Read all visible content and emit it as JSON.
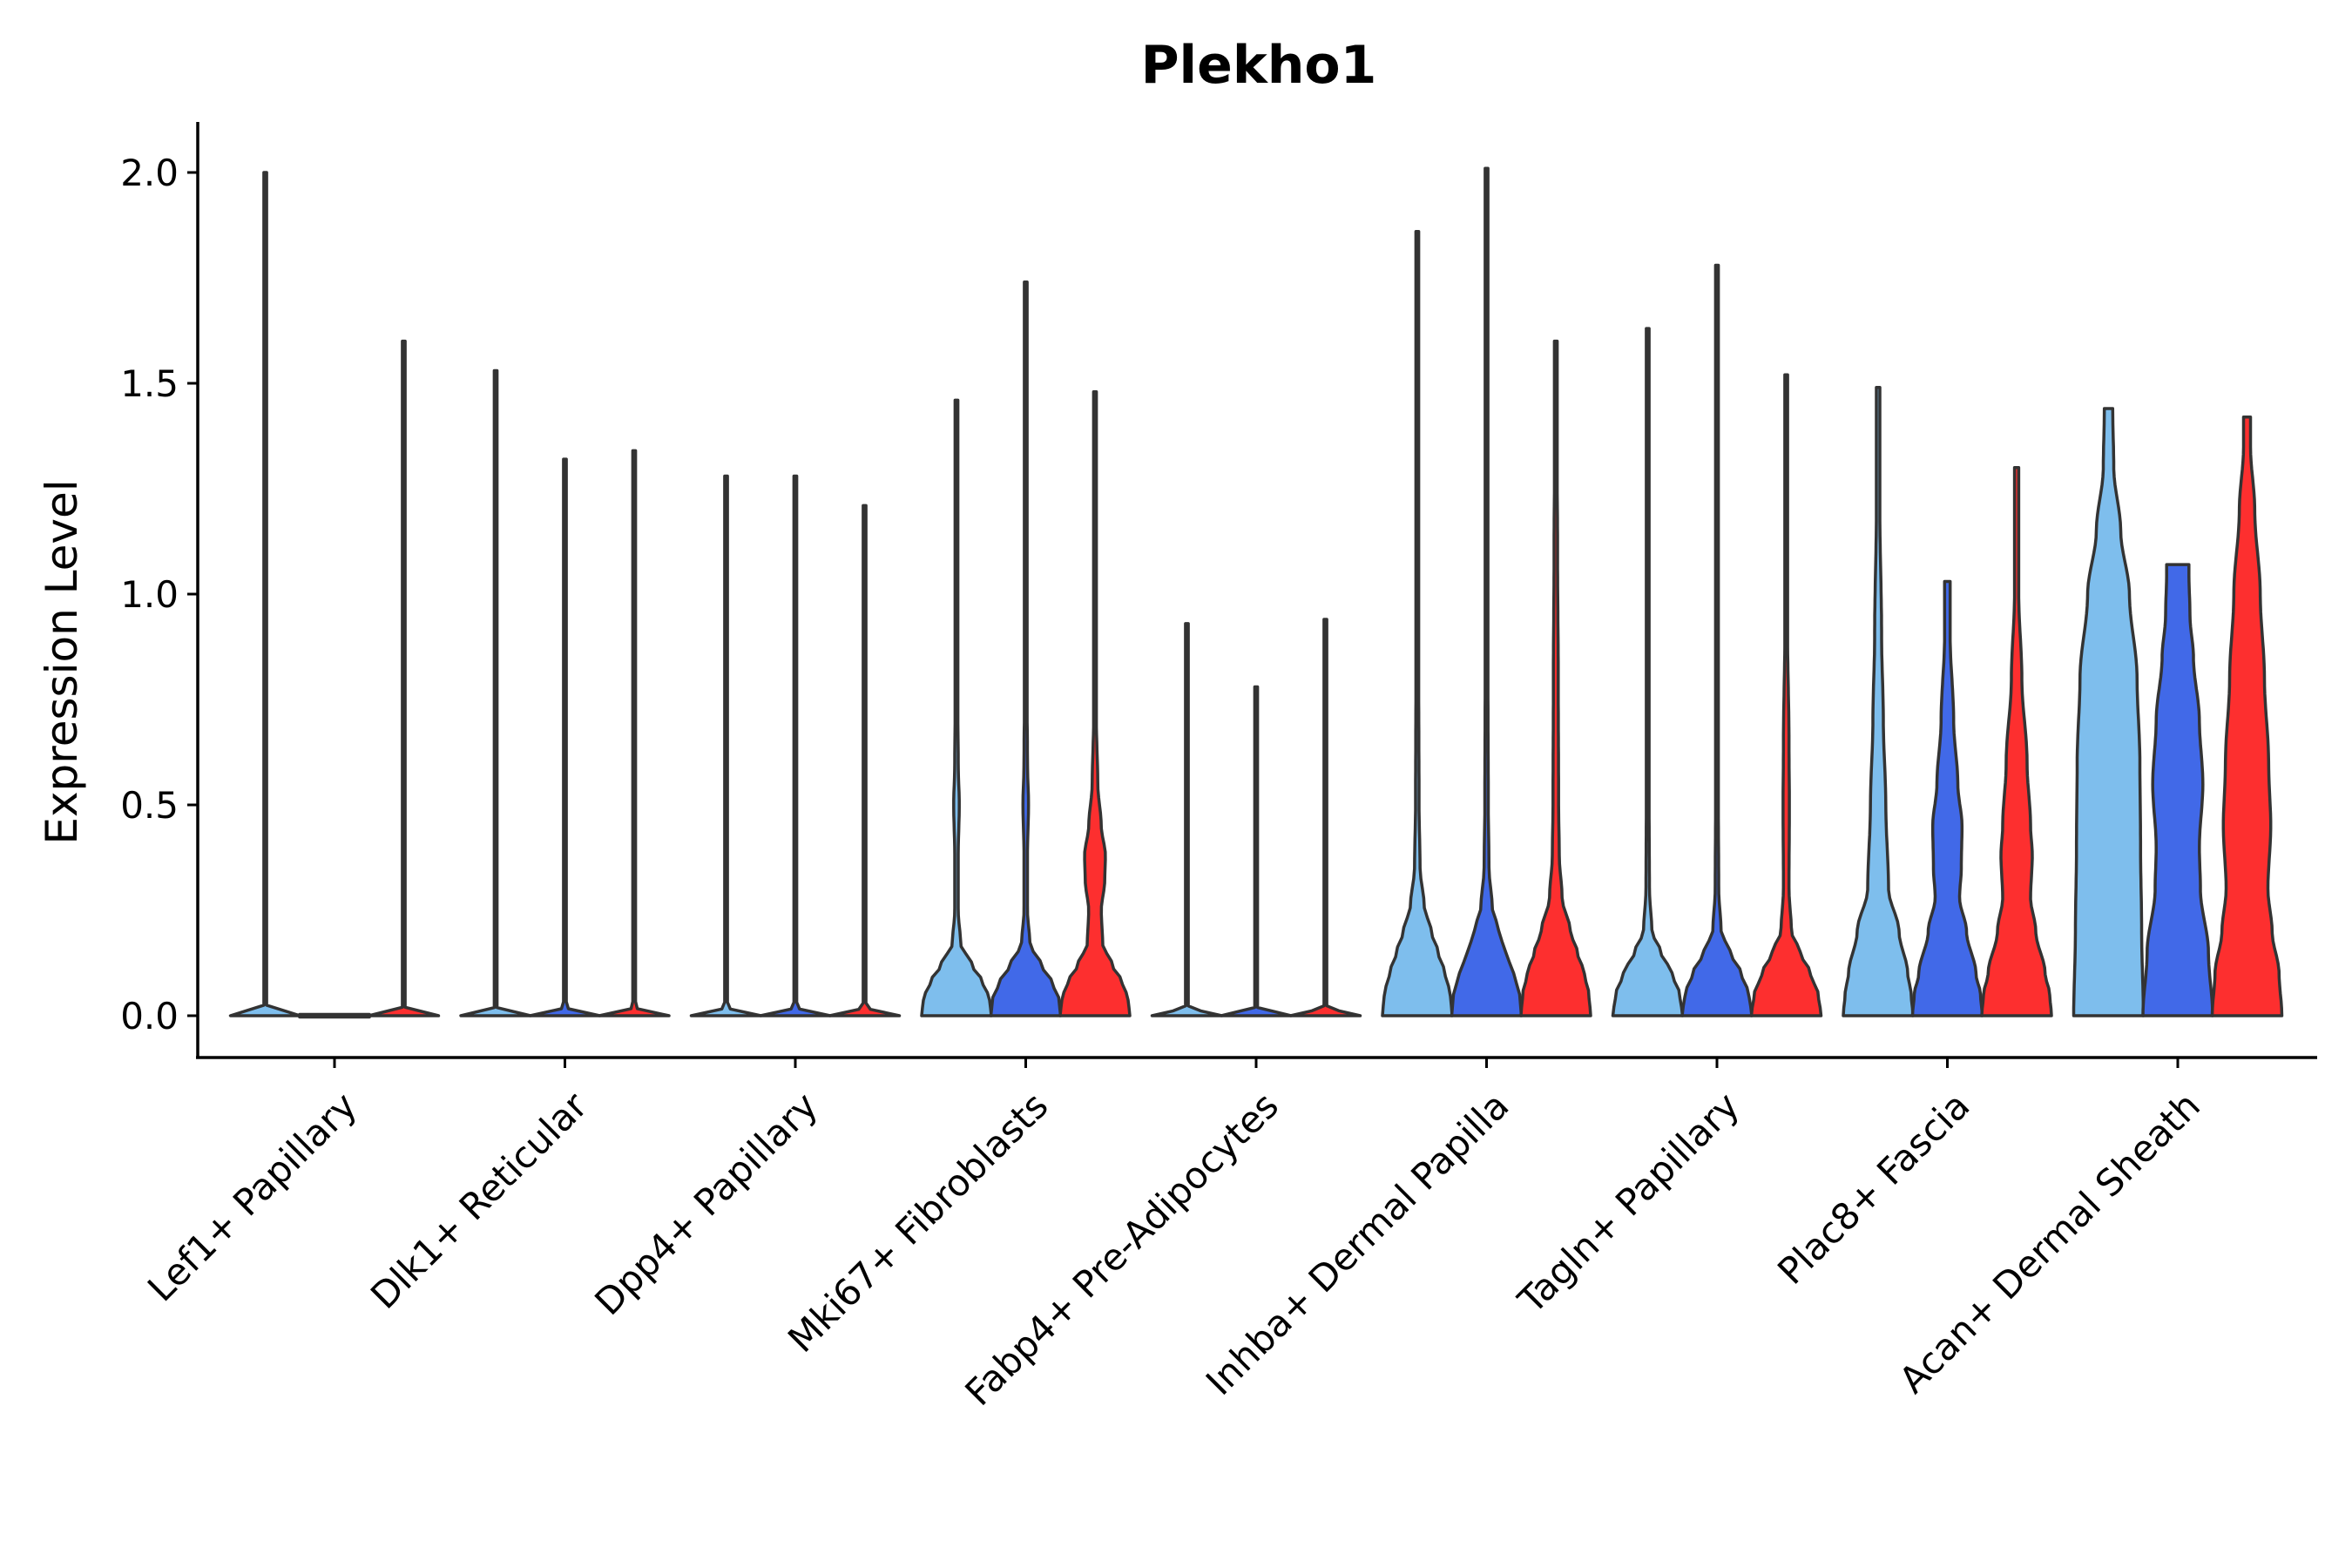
{
  "chart_data": {
    "type": "violin",
    "title": "Plekho1",
    "xlabel": "",
    "ylabel": "Expression Level",
    "ylim": [
      -0.1,
      2.1
    ],
    "yticks": [
      "0.0",
      "0.5",
      "1.0",
      "1.5",
      "2.0"
    ],
    "ytick_values": [
      0.0,
      0.5,
      1.0,
      1.5,
      2.0
    ],
    "series_colors": [
      "#7ebeed",
      "#4169e8",
      "#fd2f2f"
    ],
    "categories": [
      "Lef1+ Papillary",
      "Dlk1+ Reticular",
      "Dpp4+ Papillary",
      "Mki67+ Fibroblasts",
      "Fabp4+ Pre-Adipocytes",
      "Inhba+ Dermal Papilla",
      "Tagln+ Papillary",
      "Plac8+ Fascia",
      "Acan+ Dermal Sheath"
    ],
    "violins": [
      [
        {
          "max": 2.0,
          "profile": [
            [
              0,
              1.0
            ],
            [
              0.02,
              0.02
            ],
            [
              0.1,
              0.0
            ]
          ]
        },
        {
          "max": 0.0,
          "profile": [
            [
              0,
              1.0
            ],
            [
              0.02,
              0.02
            ],
            [
              0.1,
              0.0
            ]
          ]
        },
        {
          "max": 1.6,
          "profile": [
            [
              0,
              1.0
            ],
            [
              0.02,
              0.02
            ],
            [
              0.1,
              0.0
            ]
          ]
        }
      ],
      [
        {
          "max": 1.53,
          "profile": [
            [
              0,
              1.0
            ],
            [
              0.02,
              0.02
            ],
            [
              0.1,
              0.0
            ]
          ]
        },
        {
          "max": 1.32,
          "profile": [
            [
              0,
              1.0
            ],
            [
              0.02,
              0.02
            ],
            [
              0.1,
              0.0
            ]
          ]
        },
        {
          "max": 1.34,
          "profile": [
            [
              0,
              1.0
            ],
            [
              0.02,
              0.02
            ],
            [
              0.1,
              0.0
            ]
          ]
        }
      ],
      [
        {
          "max": 1.28,
          "profile": [
            [
              0,
              1.0
            ],
            [
              0.02,
              0.02
            ],
            [
              0.1,
              0.0
            ]
          ]
        },
        {
          "max": 1.28,
          "profile": [
            [
              0,
              1.0
            ],
            [
              0.02,
              0.02
            ],
            [
              0.1,
              0.0
            ]
          ]
        },
        {
          "max": 1.21,
          "profile": [
            [
              0,
              1.0
            ],
            [
              0.02,
              0.02
            ],
            [
              0.1,
              0.0
            ]
          ]
        }
      ],
      [
        {
          "max": 1.46,
          "profile": [
            [
              0,
              1.0
            ],
            [
              0.04,
              0.95
            ],
            [
              0.08,
              0.75
            ],
            [
              0.12,
              0.45
            ],
            [
              0.17,
              0.12
            ],
            [
              0.25,
              0.05
            ],
            [
              0.38,
              0.05
            ],
            [
              0.5,
              0.08
            ],
            [
              0.6,
              0.05
            ],
            [
              0.8,
              0.03
            ],
            [
              1.0,
              0.02
            ]
          ]
        },
        {
          "max": 1.74,
          "profile": [
            [
              0,
              1.0
            ],
            [
              0.04,
              0.95
            ],
            [
              0.08,
              0.75
            ],
            [
              0.12,
              0.45
            ],
            [
              0.17,
              0.12
            ],
            [
              0.25,
              0.05
            ],
            [
              0.38,
              0.05
            ],
            [
              0.5,
              0.08
            ],
            [
              0.6,
              0.05
            ],
            [
              0.8,
              0.03
            ],
            [
              1.0,
              0.02
            ]
          ]
        },
        {
          "max": 1.48,
          "profile": [
            [
              0,
              1.0
            ],
            [
              0.04,
              0.95
            ],
            [
              0.08,
              0.78
            ],
            [
              0.12,
              0.5
            ],
            [
              0.17,
              0.22
            ],
            [
              0.25,
              0.18
            ],
            [
              0.32,
              0.28
            ],
            [
              0.38,
              0.3
            ],
            [
              0.45,
              0.18
            ],
            [
              0.55,
              0.08
            ],
            [
              0.7,
              0.04
            ],
            [
              1.0,
              0.02
            ]
          ]
        }
      ],
      [
        {
          "max": 0.93,
          "profile": [
            [
              0,
              1.0
            ],
            [
              0.02,
              0.02
            ],
            [
              0.1,
              0.0
            ]
          ]
        },
        {
          "max": 0.78,
          "profile": [
            [
              0,
              1.0
            ],
            [
              0.02,
              0.02
            ],
            [
              0.1,
              0.0
            ]
          ]
        },
        {
          "max": 0.94,
          "profile": [
            [
              0,
              1.0
            ],
            [
              0.02,
              0.02
            ],
            [
              0.1,
              0.0
            ]
          ]
        }
      ],
      [
        {
          "max": 1.86,
          "profile": [
            [
              0,
              1.0
            ],
            [
              0.05,
              0.95
            ],
            [
              0.1,
              0.8
            ],
            [
              0.15,
              0.6
            ],
            [
              0.2,
              0.4
            ],
            [
              0.26,
              0.2
            ],
            [
              0.35,
              0.08
            ],
            [
              0.5,
              0.05
            ],
            [
              0.8,
              0.04
            ],
            [
              1.1,
              0.03
            ],
            [
              1.5,
              0.02
            ]
          ]
        },
        {
          "max": 2.01,
          "profile": [
            [
              0,
              1.0
            ],
            [
              0.05,
              0.95
            ],
            [
              0.1,
              0.78
            ],
            [
              0.15,
              0.55
            ],
            [
              0.2,
              0.35
            ],
            [
              0.26,
              0.16
            ],
            [
              0.35,
              0.07
            ],
            [
              0.5,
              0.05
            ],
            [
              0.8,
              0.04
            ],
            [
              1.1,
              0.03
            ],
            [
              1.5,
              0.02
            ]
          ]
        },
        {
          "max": 1.6,
          "profile": [
            [
              0,
              1.0
            ],
            [
              0.05,
              0.95
            ],
            [
              0.1,
              0.82
            ],
            [
              0.15,
              0.62
            ],
            [
              0.2,
              0.42
            ],
            [
              0.28,
              0.18
            ],
            [
              0.38,
              0.1
            ],
            [
              0.5,
              0.08
            ],
            [
              0.8,
              0.07
            ],
            [
              1.1,
              0.05
            ],
            [
              1.4,
              0.03
            ]
          ]
        }
      ],
      [
        {
          "max": 1.63,
          "profile": [
            [
              0,
              1.0
            ],
            [
              0.05,
              0.92
            ],
            [
              0.1,
              0.7
            ],
            [
              0.15,
              0.38
            ],
            [
              0.2,
              0.12
            ],
            [
              0.3,
              0.05
            ],
            [
              0.5,
              0.04
            ],
            [
              0.8,
              0.03
            ],
            [
              1.2,
              0.02
            ]
          ]
        },
        {
          "max": 1.78,
          "profile": [
            [
              0,
              1.0
            ],
            [
              0.05,
              0.92
            ],
            [
              0.1,
              0.7
            ],
            [
              0.15,
              0.38
            ],
            [
              0.2,
              0.12
            ],
            [
              0.3,
              0.05
            ],
            [
              0.5,
              0.04
            ],
            [
              0.8,
              0.03
            ],
            [
              1.2,
              0.02
            ]
          ]
        },
        {
          "max": 1.52,
          "profile": [
            [
              0,
              1.0
            ],
            [
              0.05,
              0.92
            ],
            [
              0.1,
              0.7
            ],
            [
              0.15,
              0.4
            ],
            [
              0.2,
              0.15
            ],
            [
              0.3,
              0.08
            ],
            [
              0.5,
              0.09
            ],
            [
              0.65,
              0.08
            ],
            [
              0.9,
              0.04
            ],
            [
              1.2,
              0.02
            ]
          ]
        }
      ],
      [
        {
          "max": 1.49,
          "profile": [
            [
              0,
              1.0
            ],
            [
              0.05,
              0.95
            ],
            [
              0.1,
              0.85
            ],
            [
              0.2,
              0.6
            ],
            [
              0.3,
              0.3
            ],
            [
              0.5,
              0.22
            ],
            [
              0.7,
              0.15
            ],
            [
              0.9,
              0.1
            ],
            [
              1.2,
              0.05
            ]
          ]
        },
        {
          "max": 1.03,
          "profile": [
            [
              0,
              1.0
            ],
            [
              0.05,
              0.95
            ],
            [
              0.1,
              0.82
            ],
            [
              0.2,
              0.55
            ],
            [
              0.28,
              0.35
            ],
            [
              0.35,
              0.4
            ],
            [
              0.45,
              0.42
            ],
            [
              0.55,
              0.3
            ],
            [
              0.7,
              0.18
            ],
            [
              0.9,
              0.08
            ]
          ]
        },
        {
          "max": 1.3,
          "profile": [
            [
              0,
              1.0
            ],
            [
              0.05,
              0.95
            ],
            [
              0.1,
              0.82
            ],
            [
              0.2,
              0.55
            ],
            [
              0.28,
              0.4
            ],
            [
              0.38,
              0.45
            ],
            [
              0.45,
              0.4
            ],
            [
              0.6,
              0.3
            ],
            [
              0.8,
              0.15
            ],
            [
              1.0,
              0.06
            ]
          ]
        }
      ],
      [
        {
          "max": 1.44,
          "profile": [
            [
              0,
              1.0
            ],
            [
              0.2,
              0.95
            ],
            [
              0.4,
              0.92
            ],
            [
              0.6,
              0.9
            ],
            [
              0.8,
              0.82
            ],
            [
              1.0,
              0.6
            ],
            [
              1.15,
              0.35
            ],
            [
              1.3,
              0.15
            ],
            [
              1.44,
              0.12
            ]
          ]
        },
        {
          "max": 1.07,
          "profile": [
            [
              0,
              1.0
            ],
            [
              0.15,
              0.88
            ],
            [
              0.3,
              0.65
            ],
            [
              0.4,
              0.62
            ],
            [
              0.55,
              0.72
            ],
            [
              0.7,
              0.62
            ],
            [
              0.85,
              0.45
            ],
            [
              0.95,
              0.35
            ],
            [
              1.05,
              0.32
            ],
            [
              1.07,
              0.32
            ]
          ]
        },
        {
          "max": 1.42,
          "profile": [
            [
              0,
              1.0
            ],
            [
              0.1,
              0.92
            ],
            [
              0.2,
              0.72
            ],
            [
              0.3,
              0.6
            ],
            [
              0.45,
              0.68
            ],
            [
              0.6,
              0.62
            ],
            [
              0.8,
              0.5
            ],
            [
              1.0,
              0.38
            ],
            [
              1.2,
              0.22
            ],
            [
              1.35,
              0.1
            ]
          ]
        }
      ]
    ]
  }
}
